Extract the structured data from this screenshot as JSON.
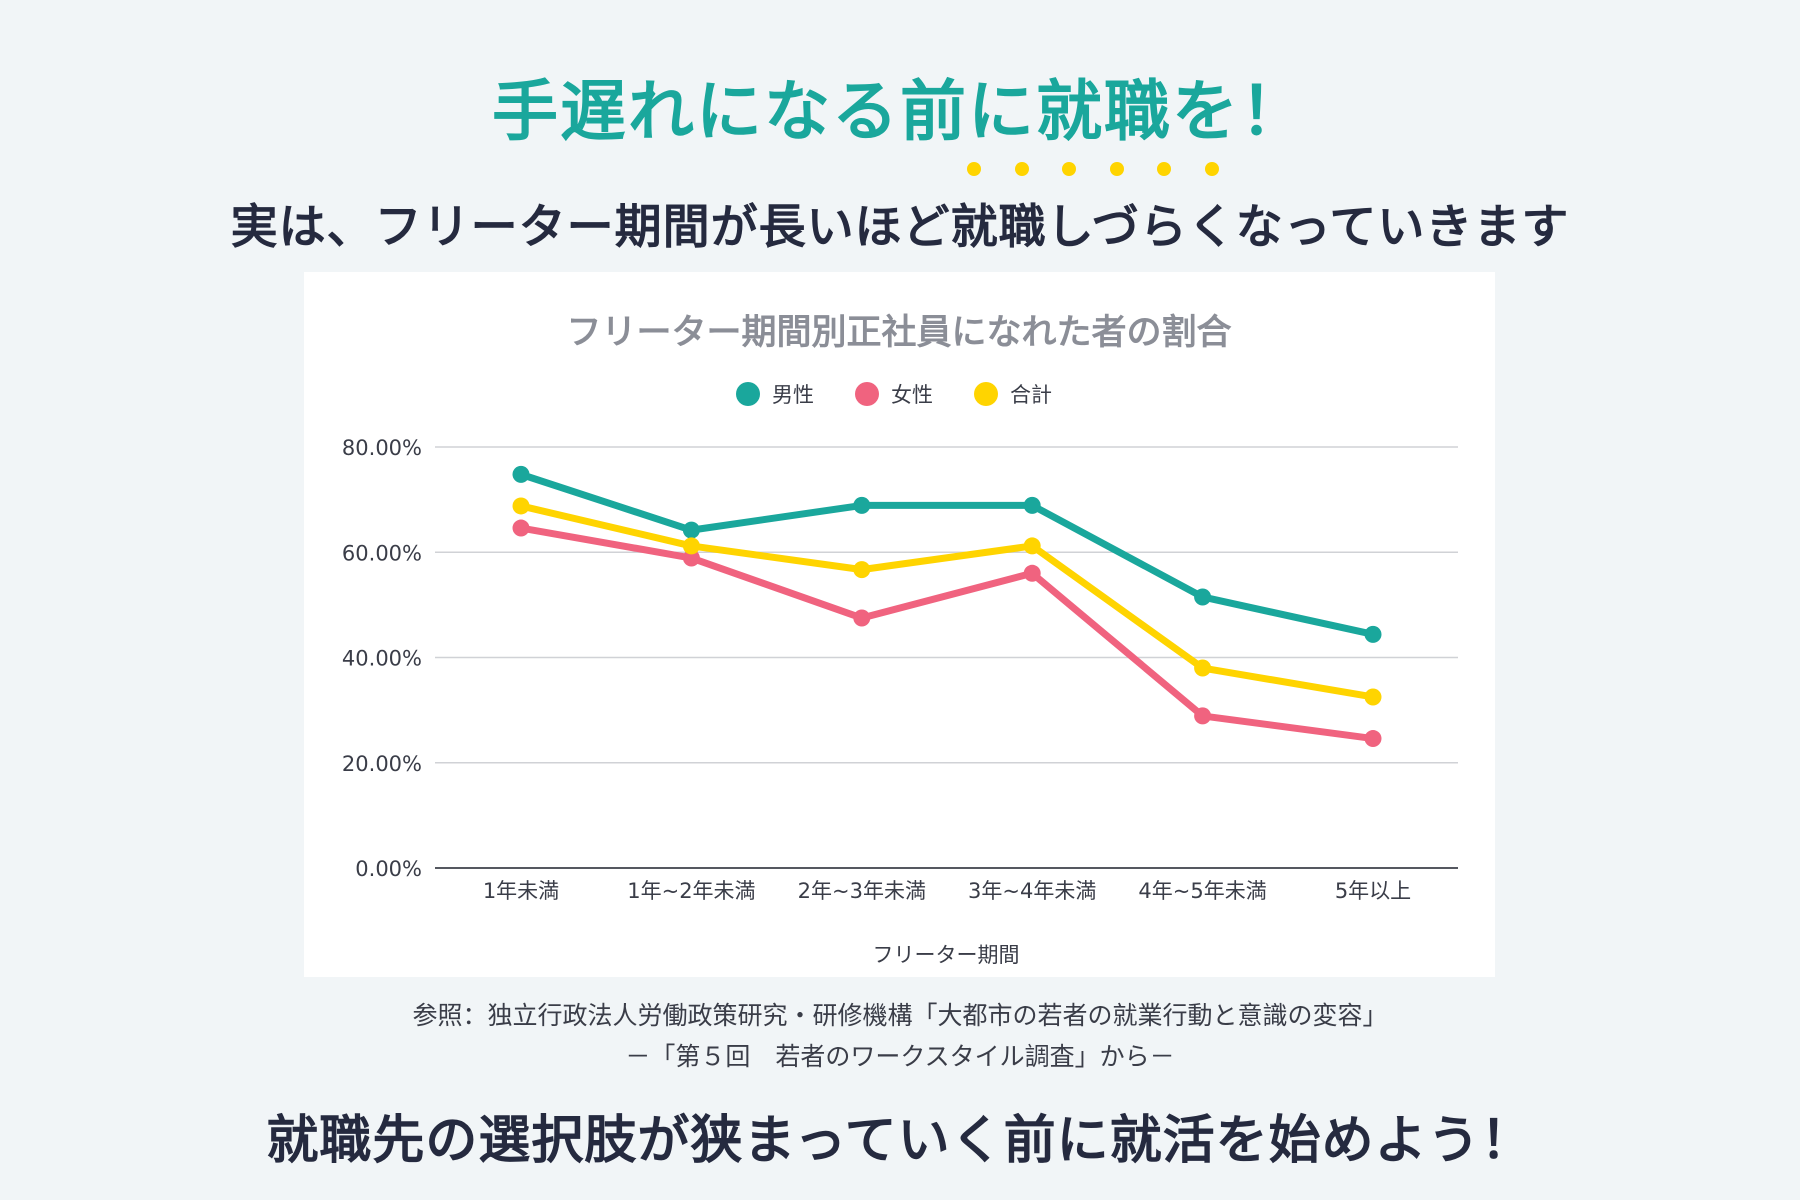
{
  "headline": "手遅れになる前に就職を！",
  "subline": {
    "before": "実は、フリーター期間が長いほど",
    "emphasis": "就職しづらく",
    "after": "なっていきます",
    "emphasis_dot_color": "#ffd400"
  },
  "citation": {
    "line1": "参照：独立行政法人労働政策研究・研修機構「大都市の若者の就業行動と意識の変容」",
    "line2": "－「第５回　若者のワークスタイル調査」から－"
  },
  "closing": "就職先の選択肢が狭まっていく前に就活を始めよう！",
  "chart_data": {
    "type": "line",
    "title": "フリーター期間別正社員になれた者の割合",
    "xlabel": "フリーター期間",
    "ylabel": "",
    "categories": [
      "1年未満",
      "1年~2年未満",
      "2年~3年未満",
      "3年~4年未満",
      "4年~5年未満",
      "5年以上"
    ],
    "ylim": [
      0,
      80
    ],
    "yticks": [
      0,
      20,
      40,
      60,
      80
    ],
    "ytick_labels": [
      "0.00%",
      "20.00%",
      "40.00%",
      "60.00%",
      "80.00%"
    ],
    "grid": true,
    "legend_position": "top-center",
    "series": [
      {
        "name": "男性",
        "color": "#1aa79c",
        "values": [
          74.8,
          64.2,
          68.9,
          68.9,
          51.5,
          44.4
        ]
      },
      {
        "name": "女性",
        "color": "#f0637f",
        "values": [
          64.6,
          58.9,
          47.5,
          56.0,
          28.9,
          24.6
        ]
      },
      {
        "name": "合計",
        "color": "#ffd400",
        "values": [
          68.8,
          61.2,
          56.7,
          61.2,
          38.0,
          32.5
        ]
      }
    ]
  }
}
